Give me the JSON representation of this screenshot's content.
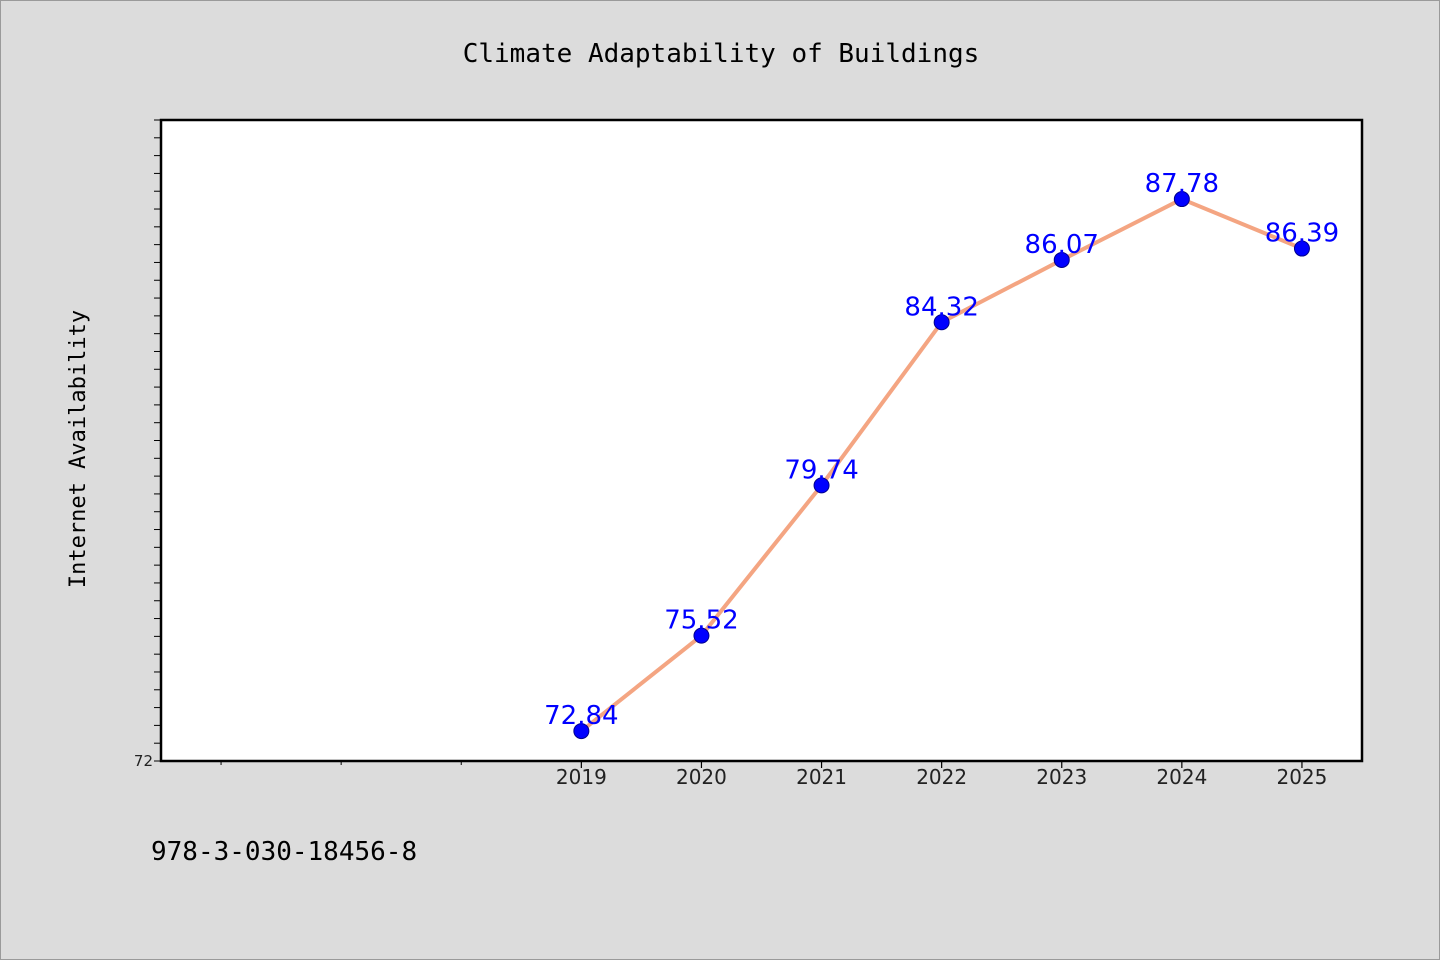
{
  "chart_data": {
    "type": "line",
    "title": "Climate Adaptability of Buildings",
    "xlabel": "",
    "ylabel": "Internet Availability",
    "x_range": [
      2015.5,
      2025.5
    ],
    "ylim": [
      72,
      90
    ],
    "y_tick_labels": [
      "72"
    ],
    "categories": [
      "2019",
      "2020",
      "2021",
      "2022",
      "2023",
      "2024",
      "2025"
    ],
    "series": [
      {
        "values": [
          72.84,
          75.52,
          79.74,
          84.32,
          86.07,
          87.78,
          86.39
        ]
      }
    ],
    "data_labels": [
      "72.84",
      "75.52",
      "79.74",
      "84.32",
      "86.07",
      "87.78",
      "86.39"
    ],
    "grid": false,
    "legend": "none",
    "colors": {
      "line": "#f4a582",
      "marker": "#0000ff",
      "label": "#0000ff",
      "frame": "#000000",
      "plot_bg": "#ffffff",
      "figure_bg": "#dcdcdc"
    }
  },
  "footer": {
    "isbn": "978-3-030-18456-8"
  }
}
